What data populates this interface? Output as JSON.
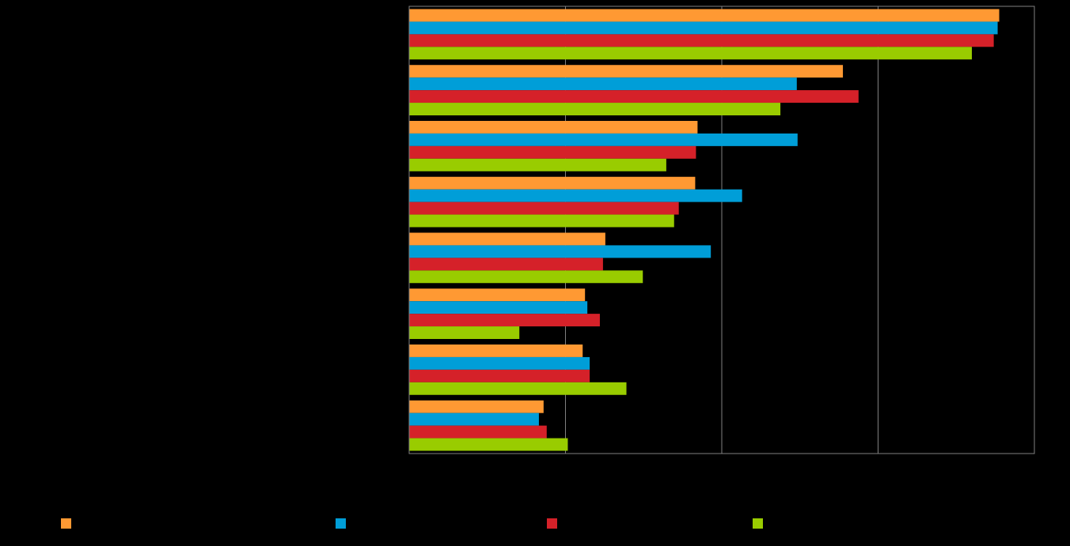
{
  "chart_data": {
    "type": "bar",
    "orientation": "horizontal",
    "categories": [
      "",
      "",
      "",
      "",
      "",
      "",
      "",
      ""
    ],
    "series": [
      {
        "color": "#ff9933",
        "values": [
          75.5,
          55.5,
          36.9,
          36.6,
          25.1,
          22.5,
          22.2,
          17.2
        ]
      },
      {
        "color": "#009ed8",
        "values": [
          75.3,
          49.6,
          49.7,
          42.6,
          38.6,
          22.8,
          23.1,
          16.6
        ]
      },
      {
        "color": "#d52129",
        "values": [
          74.8,
          57.5,
          36.7,
          34.5,
          24.8,
          24.4,
          23.1,
          17.6
        ]
      },
      {
        "color": "#99cc00",
        "values": [
          72.0,
          47.5,
          32.9,
          33.9,
          29.9,
          14.1,
          27.8,
          20.3
        ]
      }
    ],
    "data_labels": [
      "",
      "",
      "",
      "",
      "",
      "",
      "",
      ""
    ],
    "xlim": [
      0,
      80
    ],
    "x_gridlines": [
      20,
      40,
      60
    ],
    "grid": true,
    "legend_position": "bottom",
    "background": "#000000",
    "plot_border_color": "#808080"
  }
}
